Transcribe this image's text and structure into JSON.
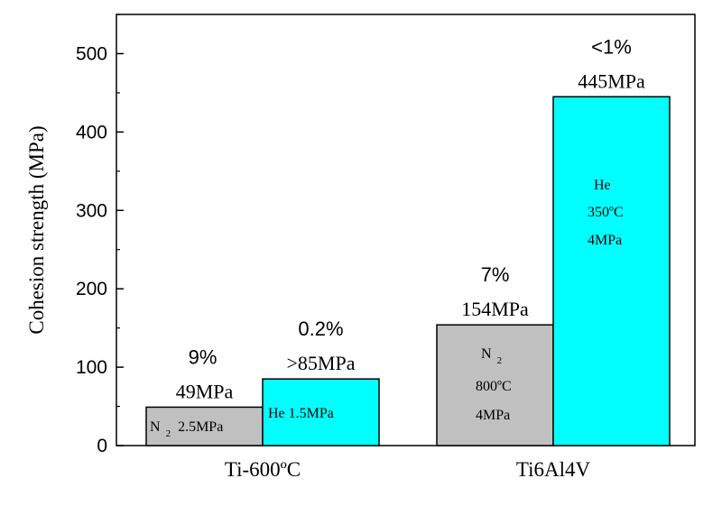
{
  "chart_data": {
    "type": "bar",
    "ylabel": "Cohesion strength (MPa)",
    "ylim": [
      0,
      550
    ],
    "yticks": [
      0,
      100,
      200,
      300,
      400,
      500
    ],
    "grid": false,
    "categories": [
      "Ti-600ºC",
      "Ti6Al4V"
    ],
    "bars": [
      {
        "category": "Ti-600ºC",
        "value": 49,
        "color": "#c0c0c0",
        "percent_label": "9%",
        "value_label": "49MPa",
        "inner_label": "N₂ 2.5MPa"
      },
      {
        "category": "Ti-600ºC",
        "value": 85,
        "color": "#00ffff",
        "percent_label": "0.2%",
        "value_label": ">85MPa",
        "inner_label": "He 1.5MPa"
      },
      {
        "category": "Ti6Al4V",
        "value": 154,
        "color": "#c0c0c0",
        "percent_label": "7%",
        "value_label": "154MPa",
        "inner_label": "N₂ 800ºC 4MPa"
      },
      {
        "category": "Ti6Al4V",
        "value": 445,
        "color": "#00ffff",
        "percent_label": "<1%",
        "value_label": "445MPa",
        "inner_label": "He 350ºC 4MPa"
      }
    ]
  }
}
